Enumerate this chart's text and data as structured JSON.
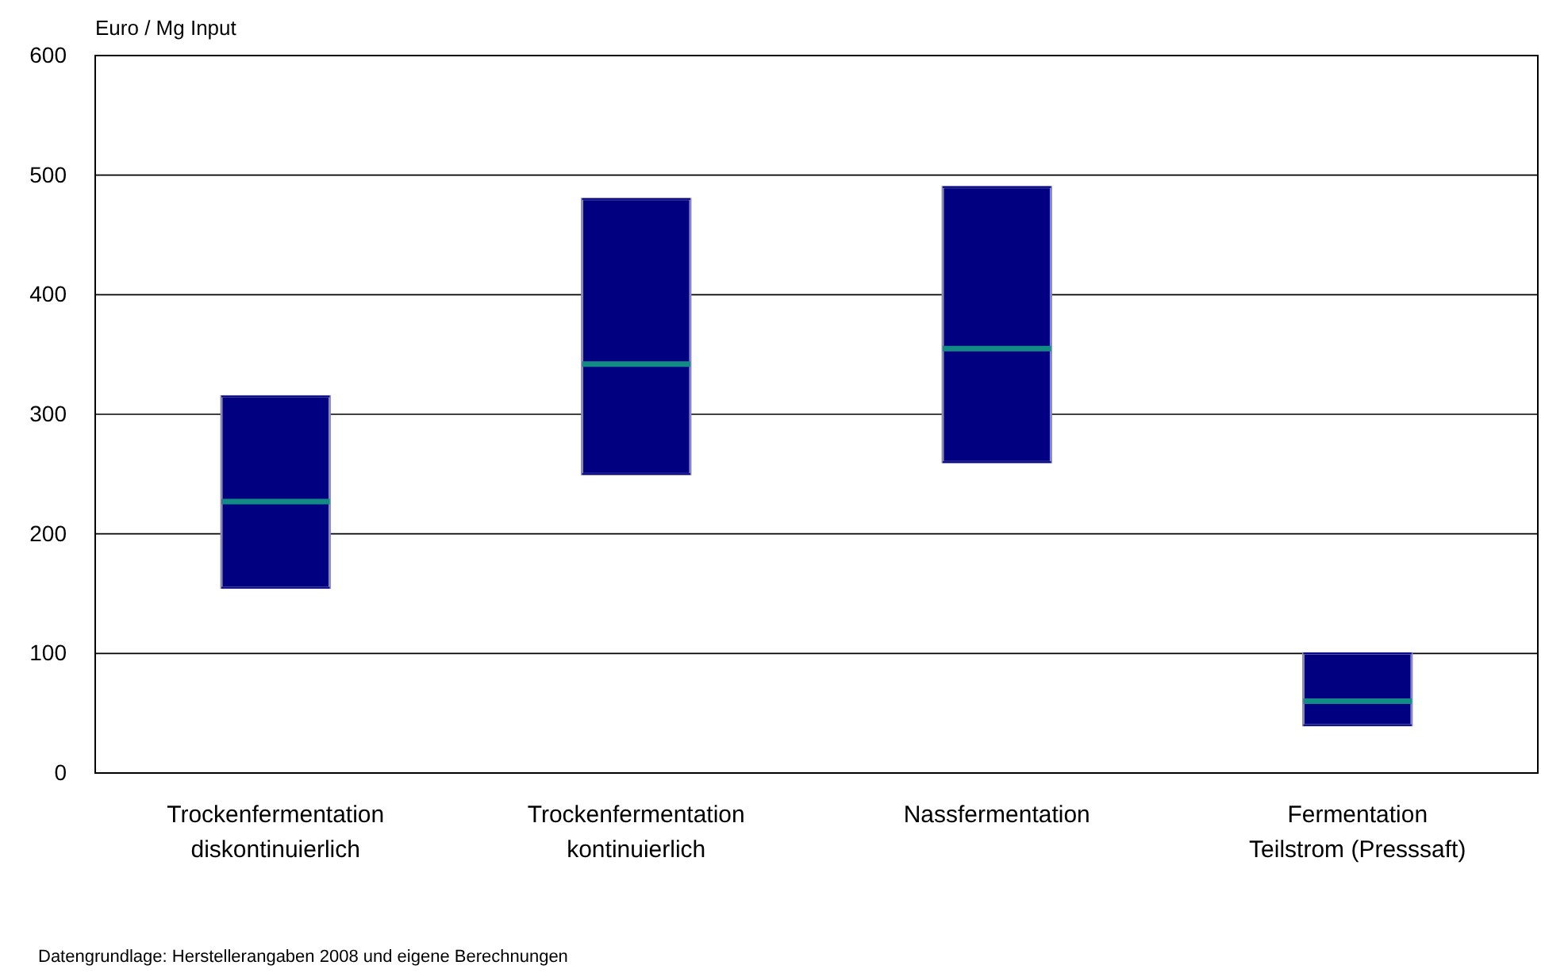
{
  "chart_data": {
    "type": "box",
    "ylabel": "Euro / Mg Input",
    "categories": [
      "Trockenfermentation\ndiskontinuierlich",
      "Trockenfermentation\nkontinuierlich",
      "Nassfermentation",
      "Fermentation\nTeilstrom (Presssaft)"
    ],
    "series": [
      {
        "color": "#000080",
        "boxes": [
          {
            "low": 155,
            "q1": 155,
            "median": 227,
            "q3": 315,
            "high": 315
          },
          {
            "low": 250,
            "q1": 250,
            "median": 342,
            "q3": 480,
            "high": 480
          },
          {
            "low": 260,
            "q1": 260,
            "median": 355,
            "q3": 490,
            "high": 490
          },
          {
            "low": 40,
            "q1": 40,
            "median": 60,
            "q3": 100,
            "high": 100
          }
        ]
      }
    ],
    "ylim": [
      0,
      600
    ],
    "yticks": [
      0,
      100,
      200,
      300,
      400,
      500,
      600
    ],
    "grid": "y",
    "annotations": [
      "Datengrundlage: Herstellerangaben 2008 und eigene Berechnungen"
    ]
  }
}
